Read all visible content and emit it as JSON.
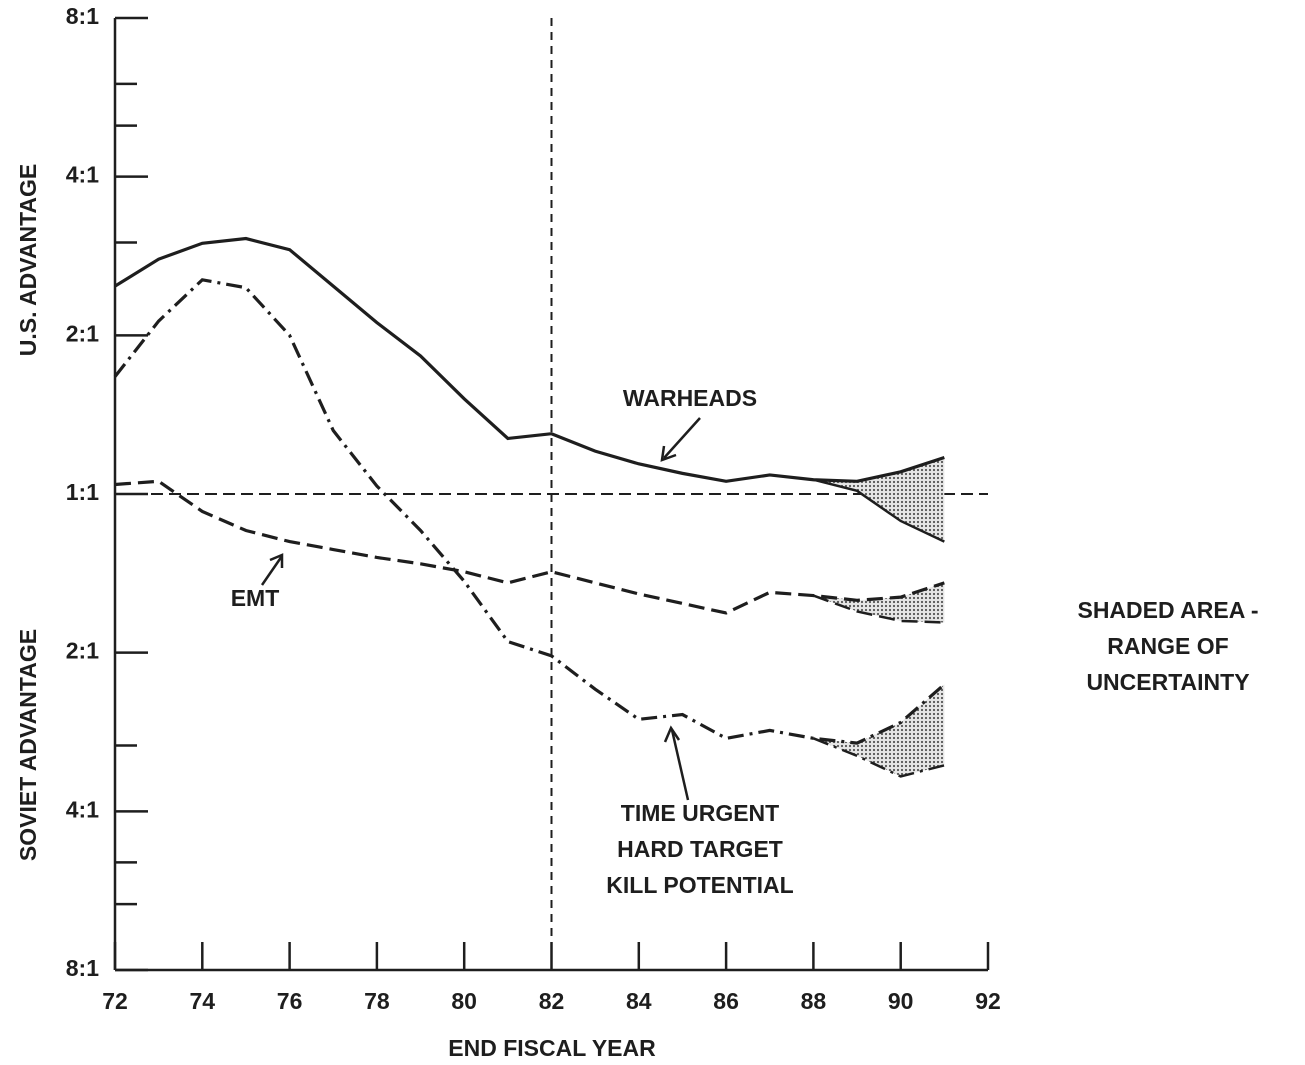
{
  "chart_data": {
    "type": "line",
    "y_scale": "log2 ratio",
    "xlabel": "END FISCAL YEAR",
    "ylabel_top": "U.S. ADVANTAGE",
    "ylabel_bottom": "SOVIET ADVANTAGE",
    "x": [
      72,
      73,
      74,
      75,
      76,
      77,
      78,
      79,
      80,
      81,
      82,
      83,
      84,
      85,
      86,
      87,
      88,
      89,
      90,
      91
    ],
    "xlim": [
      72,
      92
    ],
    "xticks": [
      72,
      74,
      76,
      78,
      80,
      82,
      84,
      86,
      88,
      90,
      92
    ],
    "ylim": [
      -3,
      3
    ],
    "yticks": [
      {
        "value": 3,
        "label": "8:1"
      },
      {
        "value": 2,
        "label": "4:1"
      },
      {
        "value": 1,
        "label": "2:1"
      },
      {
        "value": 0,
        "label": "1:1"
      },
      {
        "value": -1,
        "label": "2:1"
      },
      {
        "value": -2,
        "label": "4:1"
      },
      {
        "value": -3,
        "label": "8:1"
      }
    ],
    "y_minor_ticks": [
      2.585,
      2.322,
      1.585,
      -1.585,
      -2.322,
      -2.585
    ],
    "reference_x": 82,
    "reference_y": 0,
    "series": [
      {
        "name": "WARHEADS",
        "color": "#1e1e1e",
        "dash": "solid",
        "values": [
          1.31,
          1.48,
          1.58,
          1.61,
          1.54,
          1.31,
          1.08,
          0.87,
          0.6,
          0.35,
          0.38,
          0.27,
          0.19,
          0.13,
          0.08,
          0.12,
          0.09,
          0.08,
          0.14,
          0.23
        ],
        "lower": [
          null,
          null,
          null,
          null,
          null,
          null,
          null,
          null,
          null,
          null,
          null,
          null,
          null,
          null,
          null,
          null,
          0.09,
          0.02,
          -0.17,
          -0.3
        ]
      },
      {
        "name": "EMT",
        "color": "#1e1e1e",
        "dash": "dashed",
        "values": [
          0.06,
          0.08,
          -0.11,
          -0.23,
          -0.3,
          -0.35,
          -0.4,
          -0.44,
          -0.49,
          -0.56,
          -0.49,
          -0.56,
          -0.63,
          -0.69,
          -0.75,
          -0.62,
          -0.64,
          -0.67,
          -0.65,
          -0.56
        ],
        "lower": [
          null,
          null,
          null,
          null,
          null,
          null,
          null,
          null,
          null,
          null,
          null,
          null,
          null,
          null,
          null,
          null,
          -0.64,
          -0.74,
          -0.8,
          -0.81
        ]
      },
      {
        "name": "TIME URGENT\nHARD TARGET\nKILL POTENTIAL",
        "color": "#1e1e1e",
        "dash": "dashdot",
        "values": [
          0.74,
          1.09,
          1.35,
          1.3,
          1.0,
          0.4,
          0.05,
          -0.23,
          -0.55,
          -0.93,
          -1.02,
          -1.23,
          -1.42,
          -1.39,
          -1.54,
          -1.49,
          -1.54,
          -1.57,
          -1.44,
          -1.2
        ],
        "lower": [
          null,
          null,
          null,
          null,
          null,
          null,
          null,
          null,
          null,
          null,
          null,
          null,
          null,
          null,
          null,
          null,
          -1.54,
          -1.65,
          -1.78,
          -1.71
        ]
      }
    ],
    "shaded_note": "SHADED AREA -\nRANGE OF\nUNCERTAINTY"
  }
}
